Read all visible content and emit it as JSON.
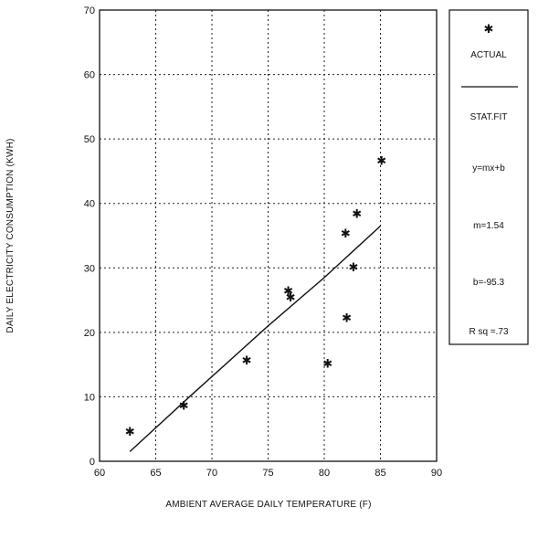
{
  "chart_data": {
    "type": "scatter",
    "xlabel": "AMBIENT AVERAGE DAILY TEMPERATURE (F)",
    "ylabel": "DAILY ELECTRICITY CONSUMPTION (KWH)",
    "xlim": [
      60,
      90
    ],
    "ylim": [
      0,
      70
    ],
    "x_ticks": [
      60,
      65,
      70,
      75,
      80,
      85,
      90
    ],
    "y_ticks": [
      0,
      10,
      20,
      30,
      40,
      50,
      60,
      70
    ],
    "grid": true,
    "grid_style": "dotted",
    "legend_position": "right",
    "series": [
      {
        "name": "ACTUAL",
        "marker": "asterisk",
        "points": [
          [
            62.7,
            4.7
          ],
          [
            67.5,
            8.7
          ],
          [
            73.1,
            15.7
          ],
          [
            76.8,
            26.5
          ],
          [
            77.0,
            25.5
          ],
          [
            80.3,
            15.2
          ],
          [
            81.9,
            35.4
          ],
          [
            82.0,
            22.3
          ],
          [
            82.6,
            30.2
          ],
          [
            82.9,
            38.5
          ],
          [
            85.1,
            46.7
          ]
        ]
      },
      {
        "name": "STAT.FIT",
        "style": "line",
        "points": [
          [
            62.7,
            1.5
          ],
          [
            68.0,
            10.0
          ],
          [
            75.0,
            21.0
          ],
          [
            80.0,
            28.5
          ],
          [
            85.0,
            36.5
          ]
        ]
      }
    ],
    "legend": {
      "actual_symbol": "✱",
      "actual_label": "ACTUAL",
      "fit_label": "STAT.FIT",
      "equation": "y=mx+b",
      "slope": "m=1.54",
      "intercept": "b=-95.3",
      "rsq": "R sq =.73"
    }
  }
}
